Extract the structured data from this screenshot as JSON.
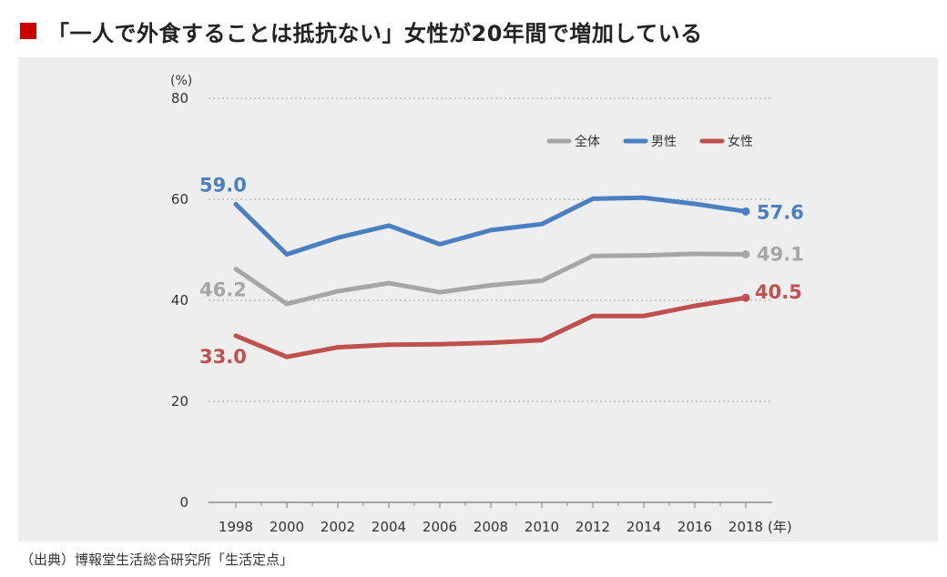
{
  "title": "「一人で外食することは抵抗ない」女性が20年間で増加している",
  "source": "（出典）博報堂生活総合研究所「生活定点」",
  "colors": {
    "title_marker": "#cc0000",
    "panel_bg": "#eeeeee",
    "grid": "#b5b5b5",
    "axis": "#888888",
    "text": "#333333"
  },
  "chart_data": {
    "type": "line",
    "y_unit_label": "(%)",
    "x_unit_label": "(年)",
    "ylim": [
      0,
      80
    ],
    "yticks": [
      0,
      20,
      40,
      60,
      80
    ],
    "grid": true,
    "legend_position": "top-right",
    "x": [
      1998,
      2000,
      2002,
      2004,
      2006,
      2008,
      2010,
      2012,
      2014,
      2016,
      2018
    ],
    "series": [
      {
        "name": "全体",
        "color": "#a6a6a6",
        "values": [
          46.2,
          39.3,
          41.8,
          43.4,
          41.6,
          43.0,
          43.9,
          48.8,
          48.9,
          49.2,
          49.1
        ],
        "first_label": "46.2",
        "last_label": "49.1"
      },
      {
        "name": "男性",
        "color": "#4a7fc1",
        "values": [
          59.0,
          49.1,
          52.4,
          54.8,
          51.1,
          53.9,
          55.1,
          60.1,
          60.3,
          59.1,
          57.6
        ],
        "first_label": "59.0",
        "last_label": "57.6"
      },
      {
        "name": "女性",
        "color": "#c0504d",
        "values": [
          33.0,
          28.8,
          30.7,
          31.2,
          31.3,
          31.6,
          32.1,
          36.9,
          36.9,
          38.9,
          40.5
        ],
        "first_label": "33.0",
        "last_label": "40.5"
      }
    ]
  }
}
